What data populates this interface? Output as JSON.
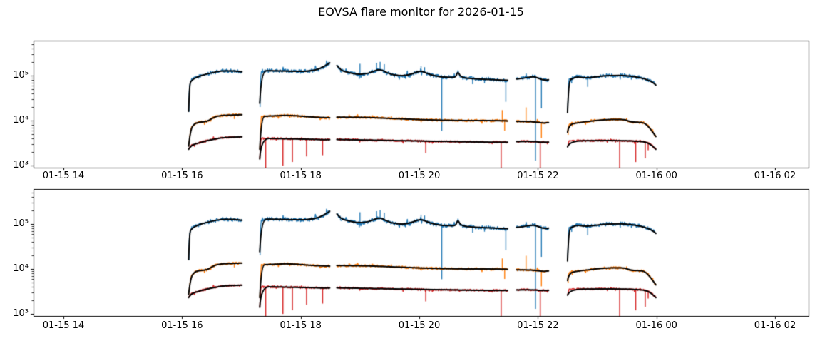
{
  "title": "EOVSA flare monitor for 2026-01-15",
  "colors": {
    "background": "#ffffff",
    "axis": "#000000",
    "smooth_overlay": "#000000",
    "band_blue": "#1f77b4",
    "band_orange": "#ff7f0e",
    "band_red": "#d62728"
  },
  "chart_data": {
    "type": "line",
    "title": "EOVSA flare monitor for 2026-01-15",
    "grid": false,
    "legend": null,
    "x_axis": {
      "unit": "hours since 2026-01-15 00:00 UT",
      "range_hours": [
        13.495,
        26.565
      ],
      "ticks_hours": [
        14,
        16,
        18,
        20,
        22,
        24,
        26
      ],
      "tick_labels": [
        "01-15 14",
        "01-15 16",
        "01-15 18",
        "01-15 20",
        "01-15 22",
        "01-16 00",
        "01-16 02"
      ]
    },
    "y_axis": {
      "scale": "log",
      "range": [
        900,
        590000
      ],
      "ticks": [
        1000,
        10000,
        100000
      ],
      "tick_labels": [
        "10³",
        "10⁴",
        "10⁵"
      ]
    },
    "subplots": [
      {
        "name": "top"
      },
      {
        "name": "bottom"
      }
    ],
    "note": "Both subplots show the same three band light curves with black smoothed overlays; data gaps between scans.",
    "series": [
      {
        "name": "blue-band",
        "color": "#1f77b4",
        "noise_log10": 0.042,
        "linewidth": 1.3,
        "segments": [
          {
            "points": [
              [
                16.11,
                16000
              ],
              [
                16.125,
                65000
              ],
              [
                16.16,
                78000
              ],
              [
                16.25,
                92000
              ],
              [
                16.4,
                106000
              ],
              [
                16.55,
                118000
              ],
              [
                16.65,
                125000
              ],
              [
                16.8,
                126000
              ],
              [
                16.9,
                124000
              ],
              [
                17.01,
                120000
              ]
            ],
            "spikes": [
              [
                16.115,
                15500
              ]
            ]
          },
          {
            "points": [
              [
                17.31,
                24000
              ],
              [
                17.335,
                125000
              ],
              [
                17.5,
                127000
              ],
              [
                17.8,
                124000
              ],
              [
                18.0,
                122000
              ],
              [
                18.15,
                125000
              ],
              [
                18.3,
                135000
              ],
              [
                18.45,
                175000
              ],
              [
                18.49,
                190000
              ]
            ],
            "spikes": [
              [
                17.315,
                20000
              ]
            ]
          },
          {
            "points": [
              [
                18.61,
                165000
              ],
              [
                18.68,
                128000
              ],
              [
                18.78,
                118000
              ],
              [
                18.95,
                105000
              ],
              [
                19.1,
                108000
              ],
              [
                19.2,
                118000
              ],
              [
                19.33,
                140000
              ],
              [
                19.45,
                115000
              ],
              [
                19.55,
                103000
              ],
              [
                19.75,
                97000
              ],
              [
                19.9,
                110000
              ],
              [
                20.02,
                128000
              ],
              [
                20.12,
                112000
              ],
              [
                20.25,
                98000
              ],
              [
                20.4,
                92000
              ],
              [
                20.55,
                90000
              ],
              [
                20.62,
                92000
              ],
              [
                20.65,
                125000
              ],
              [
                20.7,
                90000
              ],
              [
                20.9,
                85000
              ],
              [
                21.1,
                82000
              ],
              [
                21.3,
                80000
              ],
              [
                21.49,
                78000
              ]
            ],
            "spikes": [
              [
                19.0,
                180000
              ],
              [
                19.28,
                190000
              ],
              [
                19.34,
                200000
              ],
              [
                19.41,
                178000
              ],
              [
                20.03,
                160000
              ],
              [
                20.09,
                152000
              ],
              [
                20.38,
                5900
              ],
              [
                20.9,
                64000
              ],
              [
                21.1,
                67000
              ],
              [
                21.46,
                26000
              ]
            ]
          },
          {
            "points": [
              [
                21.64,
                83000
              ],
              [
                21.75,
                86000
              ],
              [
                21.9,
                94000
              ],
              [
                21.97,
                91000
              ],
              [
                22.05,
                82000
              ],
              [
                22.12,
                78000
              ],
              [
                22.18,
                80000
              ]
            ],
            "spikes": [
              [
                21.96,
                1300
              ],
              [
                22.06,
                18500
              ]
            ]
          },
          {
            "points": [
              [
                22.5,
                15000
              ],
              [
                22.52,
                76000
              ],
              [
                22.58,
                85000
              ],
              [
                22.66,
                93000
              ],
              [
                22.75,
                90000
              ],
              [
                22.85,
                88000
              ],
              [
                23.0,
                94000
              ],
              [
                23.15,
                98000
              ],
              [
                23.3,
                100000
              ],
              [
                23.45,
                100000
              ],
              [
                23.6,
                95000
              ],
              [
                23.75,
                88000
              ],
              [
                23.87,
                78000
              ],
              [
                23.95,
                68000
              ],
              [
                23.99,
                61000
              ]
            ],
            "spikes": [
              [
                22.57,
                66000
              ],
              [
                22.84,
                56000
              ]
            ]
          }
        ]
      },
      {
        "name": "orange-band",
        "color": "#ff7f0e",
        "noise_log10": 0.028,
        "linewidth": 1.4,
        "segments": [
          {
            "points": [
              [
                16.11,
                2700
              ],
              [
                16.14,
                6000
              ],
              [
                16.2,
                8500
              ],
              [
                16.3,
                9200
              ],
              [
                16.42,
                9500
              ],
              [
                16.5,
                11000
              ],
              [
                16.58,
                12500
              ],
              [
                16.7,
                13000
              ],
              [
                16.85,
                13200
              ],
              [
                17.01,
                13500
              ]
            ],
            "spikes": [
              [
                16.88,
                10800
              ]
            ]
          },
          {
            "points": [
              [
                17.31,
                2300
              ],
              [
                17.335,
                12200
              ],
              [
                17.45,
                12500
              ],
              [
                17.6,
                12800
              ],
              [
                17.75,
                13000
              ],
              [
                17.9,
                12800
              ],
              [
                18.1,
                12200
              ],
              [
                18.3,
                11700
              ],
              [
                18.49,
                11500
              ]
            ],
            "spikes": []
          },
          {
            "points": [
              [
                18.61,
                11800
              ],
              [
                19.0,
                11800
              ],
              [
                19.3,
                11500
              ],
              [
                19.6,
                11000
              ],
              [
                19.9,
                10600
              ],
              [
                20.2,
                10300
              ],
              [
                20.6,
                10000
              ],
              [
                21.0,
                10000
              ],
              [
                21.3,
                9900
              ],
              [
                21.49,
                9800
              ]
            ],
            "spikes": [
              [
                21.4,
                17000
              ],
              [
                21.44,
                6000
              ]
            ]
          },
          {
            "points": [
              [
                21.64,
                9500
              ],
              [
                21.8,
                9600
              ],
              [
                21.95,
                9300
              ],
              [
                22.05,
                8900
              ],
              [
                22.12,
                8800
              ],
              [
                22.18,
                9000
              ]
            ],
            "spikes": [
              [
                21.8,
                19500
              ],
              [
                22.06,
                4100
              ]
            ]
          },
          {
            "points": [
              [
                22.5,
                5500
              ],
              [
                22.52,
                8300
              ],
              [
                22.7,
                9000
              ],
              [
                22.9,
                9800
              ],
              [
                23.1,
                10400
              ],
              [
                23.35,
                10600
              ],
              [
                23.48,
                10400
              ],
              [
                23.55,
                9400
              ],
              [
                23.7,
                9100
              ],
              [
                23.8,
                8900
              ],
              [
                23.9,
                6500
              ],
              [
                23.99,
                4400
              ]
            ],
            "spikes": [
              [
                22.51,
                4800
              ]
            ]
          }
        ]
      },
      {
        "name": "red-band",
        "color": "#d62728",
        "noise_log10": 0.022,
        "linewidth": 1.5,
        "segments": [
          {
            "points": [
              [
                16.11,
                2300
              ],
              [
                16.15,
                2800
              ],
              [
                16.25,
                3100
              ],
              [
                16.4,
                3500
              ],
              [
                16.55,
                3900
              ],
              [
                16.7,
                4200
              ],
              [
                16.85,
                4300
              ],
              [
                17.01,
                4350
              ]
            ],
            "spikes": []
          },
          {
            "points": [
              [
                17.31,
                1400
              ],
              [
                17.33,
                4000
              ],
              [
                17.6,
                4000
              ],
              [
                17.9,
                3900
              ],
              [
                18.2,
                3800
              ],
              [
                18.49,
                3750
              ]
            ],
            "spikes": [
              [
                17.41,
                900
              ],
              [
                17.7,
                1000
              ],
              [
                17.86,
                1200
              ],
              [
                18.1,
                1600
              ],
              [
                18.37,
                1700
              ]
            ]
          },
          {
            "points": [
              [
                18.61,
                3800
              ],
              [
                19.0,
                3700
              ],
              [
                19.5,
                3600
              ],
              [
                20.0,
                3500
              ],
              [
                20.5,
                3400
              ],
              [
                21.0,
                3350
              ],
              [
                21.49,
                3300
              ]
            ],
            "spikes": [
              [
                20.11,
                1900
              ],
              [
                21.38,
                900
              ]
            ]
          },
          {
            "points": [
              [
                21.64,
                3400
              ],
              [
                21.9,
                3450
              ],
              [
                22.05,
                3300
              ],
              [
                22.18,
                3300
              ]
            ],
            "spikes": [
              [
                22.04,
                900
              ]
            ]
          },
          {
            "points": [
              [
                22.5,
                2600
              ],
              [
                22.53,
                3550
              ],
              [
                23.0,
                3600
              ],
              [
                23.4,
                3600
              ],
              [
                23.55,
                3500
              ],
              [
                23.78,
                3450
              ],
              [
                23.9,
                3000
              ],
              [
                23.99,
                2300
              ]
            ],
            "spikes": [
              [
                23.38,
                900
              ],
              [
                23.65,
                1200
              ],
              [
                23.81,
                1450
              ],
              [
                23.86,
                2200
              ]
            ]
          }
        ]
      }
    ]
  }
}
